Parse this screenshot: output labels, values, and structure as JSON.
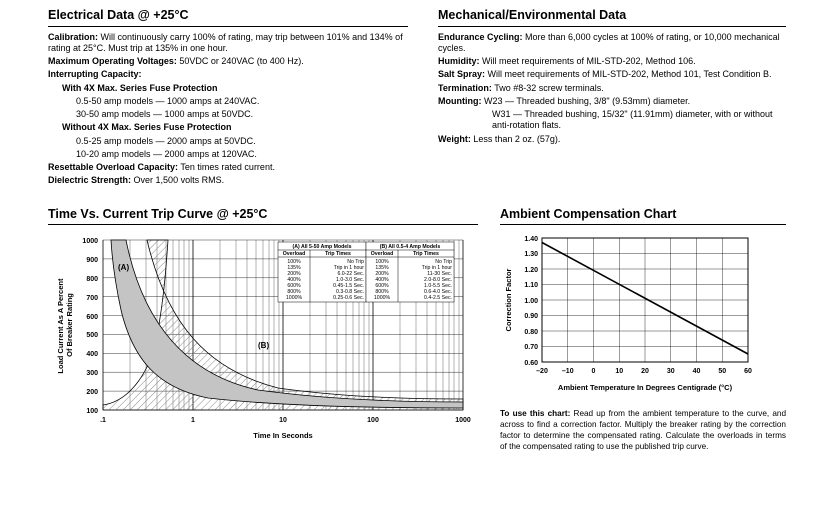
{
  "electrical": {
    "title": "Electrical Data @ +25°C",
    "calibration_label": "Calibration:",
    "calibration": "Will continuously carry 100% of rating, may trip between 101% and 134% of rating at 25°C. Must trip at 135% in one hour.",
    "max_op_voltage_label": "Maximum Operating Voltages:",
    "max_op_voltage": "50VDC or 240VAC (to 400 Hz).",
    "interrupt_label": "Interrupting Capacity:",
    "with4x_label": "With 4X Max. Series Fuse Protection",
    "with4x_a": "0.5-50 amp models — 1000 amps at 240VAC.",
    "with4x_b": "30-50 amp models — 1000 amps at 50VDC.",
    "without4x_label": "Without 4X Max. Series Fuse Protection",
    "without4x_a": "0.5-25 amp models — 2000 amps at 50VDC.",
    "without4x_b": "10-20 amp models — 2000 amps at 120VAC.",
    "resettable_label": "Resettable Overload Capacity:",
    "resettable": "Ten times rated current.",
    "dielectric_label": "Dielectric Strength:",
    "dielectric": "Over 1,500 volts RMS."
  },
  "mechanical": {
    "title": "Mechanical/Environmental Data",
    "endurance_label": "Endurance Cycling:",
    "endurance": "More than 6,000 cycles at 100% of rating, or 10,000 mechanical cycles.",
    "humidity_label": "Humidity:",
    "humidity": "Will meet requirements of MIL-STD-202, Method 106.",
    "salt_label": "Salt Spray:",
    "salt": "Will meet requirements of MIL-STD-202, Method 101, Test Condition B.",
    "termination_label": "Termination:",
    "termination": "Two #8-32 screw terminals.",
    "mounting_label": "Mounting:",
    "mounting_a": "W23 — Threaded bushing, 3/8\" (9.53mm) diameter.",
    "mounting_b": "W31 — Threaded bushing, 15/32\" (11.91mm) diameter, with or without anti-rotation flats.",
    "weight_label": "Weight:",
    "weight": "Less than 2 oz. (57g)."
  },
  "tripcurve": {
    "title": "Time Vs. Current Trip Curve @ +25°C",
    "ylabel": "Load Current As A Percent\nOf Breaker Rating",
    "xlabel": "Time In Seconds",
    "yticks": [
      100,
      200,
      300,
      400,
      500,
      600,
      700,
      800,
      900,
      1000
    ],
    "xticks": [
      ".1",
      "1",
      "10",
      "100",
      "1000"
    ],
    "table_a_title": "(A) All 5-50 Amp Models",
    "table_b_title": "(B) All 0.5-4 Amp Models",
    "col_overload": "Overload",
    "col_triptimes": "Trip Times",
    "table_a": [
      [
        "100%",
        "No Trip"
      ],
      [
        "135%",
        "Trip in 1 hour"
      ],
      [
        "200%",
        "6.0-22 Sec."
      ],
      [
        "400%",
        "1.0-3.0 Sec."
      ],
      [
        "600%",
        "0.45-1.5 Sec."
      ],
      [
        "800%",
        "0.3-0.8 Sec."
      ],
      [
        "1000%",
        "0.25-0.6 Sec."
      ]
    ],
    "table_b": [
      [
        "100%",
        "No Trip"
      ],
      [
        "135%",
        "Trip in 1 hour"
      ],
      [
        "200%",
        "11-30 Sec."
      ],
      [
        "400%",
        "2.0-8.0 Sec."
      ],
      [
        "600%",
        "1.0-5.5 Sec."
      ],
      [
        "800%",
        "0.6-4.0 Sec."
      ],
      [
        "1000%",
        "0.4-2.5 Sec."
      ]
    ],
    "label_a": "(A)",
    "label_b": "(B)"
  },
  "compchart": {
    "title": "Ambient Compensation Chart",
    "ylabel": "Correction Factor",
    "xlabel": "Ambient Temperature In Degrees Centigrade (°C)",
    "yticks": [
      "0.60",
      "0.70",
      "0.80",
      "0.90",
      "1.00",
      "1.10",
      "1.20",
      "1.30",
      "1.40"
    ],
    "xticks": [
      "–20",
      "–10",
      "0",
      "10",
      "20",
      "30",
      "40",
      "50",
      "60"
    ],
    "note_label": "To use this chart:",
    "note": "Read up from the ambient temperature to the curve, and across to find a correction factor. Multiply the breaker rating by the correction factor to determine the compensated rating. Calculate the overloads in terms of the compensated rating to use the published trip curve."
  },
  "colors": {
    "text": "#000000",
    "grid": "#000000",
    "band_fill": "#bdbdbd",
    "hatch": "#8a8a8a",
    "bg": "#ffffff"
  }
}
